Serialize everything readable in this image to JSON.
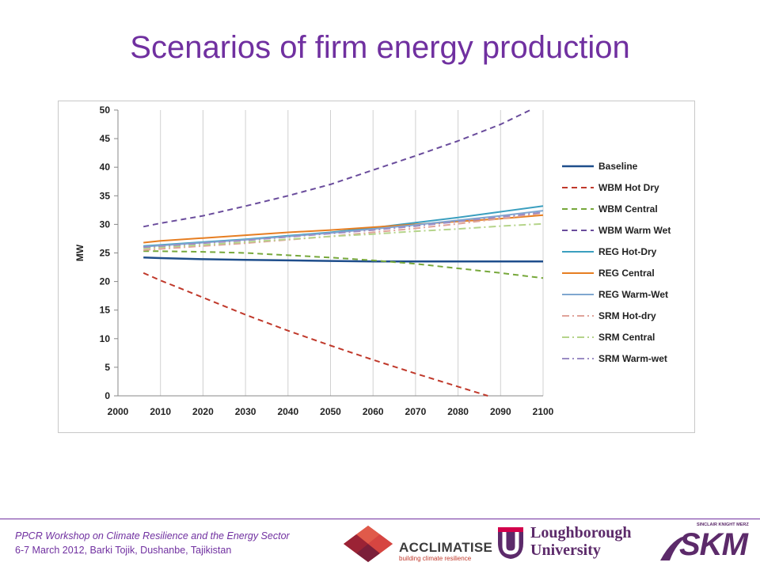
{
  "slide": {
    "title": "Scenarios of firm energy production",
    "footer_line1": "PPCR Workshop on Climate Resilience and the Energy Sector",
    "footer_line2": "6-7 March 2012, Barki Tojik, Dushanbe, Tajikistan"
  },
  "logos": {
    "acclimatise_name": "ACCLIMATISE",
    "acclimatise_tagline": "building climate resilience",
    "lboro_line1": "Loughborough",
    "lboro_line2": "University",
    "skm_small": "SINCLAIR KNIGHT MERZ",
    "skm_big": "SKM"
  },
  "chart_data": {
    "type": "line",
    "title": "",
    "xlabel": "",
    "ylabel": "MW",
    "xlim": [
      2000,
      2100
    ],
    "ylim": [
      0,
      50
    ],
    "xticks": [
      2000,
      2010,
      2020,
      2030,
      2040,
      2050,
      2060,
      2070,
      2080,
      2090,
      2100
    ],
    "yticks": [
      0,
      5,
      10,
      15,
      20,
      25,
      30,
      35,
      40,
      45,
      50
    ],
    "grid": "vertical",
    "legend_position": "right",
    "series": [
      {
        "name": "Baseline",
        "color": "#1f4e8c",
        "style": "solid",
        "width": 2.5,
        "x": [
          2006,
          2010,
          2020,
          2030,
          2040,
          2050,
          2060,
          2070,
          2080,
          2090,
          2100
        ],
        "y": [
          24.2,
          24.1,
          23.9,
          23.8,
          23.7,
          23.6,
          23.5,
          23.5,
          23.5,
          23.5,
          23.5
        ]
      },
      {
        "name": "WBM Hot Dry",
        "color": "#c0392b",
        "style": "dash",
        "width": 2,
        "x": [
          2006,
          2010,
          2020,
          2030,
          2040,
          2050,
          2060,
          2070,
          2080,
          2087
        ],
        "y": [
          21.5,
          20.2,
          17.2,
          14.2,
          11.4,
          8.8,
          6.3,
          3.9,
          1.6,
          0
        ]
      },
      {
        "name": "WBM Central",
        "color": "#77a83b",
        "style": "dash",
        "width": 2,
        "x": [
          2006,
          2010,
          2020,
          2030,
          2040,
          2050,
          2060,
          2070,
          2080,
          2090,
          2100
        ],
        "y": [
          25.3,
          25.3,
          25.2,
          25.0,
          24.6,
          24.2,
          23.7,
          23.1,
          22.3,
          21.5,
          20.6
        ]
      },
      {
        "name": "WBM Warm Wet",
        "color": "#6a4c9c",
        "style": "dash",
        "width": 2,
        "x": [
          2006,
          2010,
          2020,
          2030,
          2040,
          2050,
          2060,
          2070,
          2080,
          2090,
          2097
        ],
        "y": [
          29.6,
          30.2,
          31.5,
          33.2,
          35.0,
          37.0,
          39.5,
          42.0,
          44.6,
          47.5,
          50.0
        ]
      },
      {
        "name": "REG Hot-Dry",
        "color": "#3b9fbf",
        "style": "solid",
        "width": 2,
        "x": [
          2006,
          2010,
          2020,
          2030,
          2040,
          2050,
          2060,
          2070,
          2080,
          2090,
          2100
        ],
        "y": [
          26.2,
          26.4,
          26.9,
          27.4,
          28.0,
          28.6,
          29.4,
          30.3,
          31.2,
          32.2,
          33.2
        ]
      },
      {
        "name": "REG Central",
        "color": "#e67e22",
        "style": "solid",
        "width": 2,
        "x": [
          2006,
          2010,
          2020,
          2030,
          2040,
          2050,
          2060,
          2070,
          2080,
          2090,
          2100
        ],
        "y": [
          26.8,
          27.1,
          27.6,
          28.1,
          28.6,
          29.0,
          29.5,
          30.0,
          30.5,
          31.0,
          31.6
        ]
      },
      {
        "name": "REG Warm-Wet",
        "color": "#7fa7d0",
        "style": "solid",
        "width": 2,
        "x": [
          2006,
          2010,
          2020,
          2030,
          2040,
          2050,
          2060,
          2070,
          2080,
          2090,
          2100
        ],
        "y": [
          26.1,
          26.3,
          26.8,
          27.3,
          27.9,
          28.5,
          29.2,
          29.9,
          30.7,
          31.5,
          32.4
        ]
      },
      {
        "name": "SRM Hot-dry",
        "color": "#e0a39a",
        "style": "dashdot",
        "width": 2,
        "x": [
          2006,
          2010,
          2020,
          2030,
          2040,
          2050,
          2060,
          2070,
          2080,
          2090,
          2100
        ],
        "y": [
          25.5,
          25.7,
          26.2,
          26.7,
          27.3,
          27.9,
          28.6,
          29.3,
          30.1,
          31.0,
          32.0
        ]
      },
      {
        "name": "SRM Central",
        "color": "#b5d48a",
        "style": "dashdot",
        "width": 2,
        "x": [
          2006,
          2010,
          2020,
          2030,
          2040,
          2050,
          2060,
          2070,
          2080,
          2090,
          2100
        ],
        "y": [
          25.8,
          26.0,
          26.4,
          26.9,
          27.4,
          27.9,
          28.3,
          28.8,
          29.2,
          29.7,
          30.1
        ]
      },
      {
        "name": "SRM Warm-wet",
        "color": "#9b8cc4",
        "style": "dashdot",
        "width": 2,
        "x": [
          2006,
          2010,
          2020,
          2030,
          2040,
          2050,
          2060,
          2070,
          2080,
          2090,
          2100
        ],
        "y": [
          26.0,
          26.2,
          26.7,
          27.2,
          27.8,
          28.4,
          29.0,
          29.7,
          30.5,
          31.3,
          32.1
        ]
      }
    ]
  }
}
